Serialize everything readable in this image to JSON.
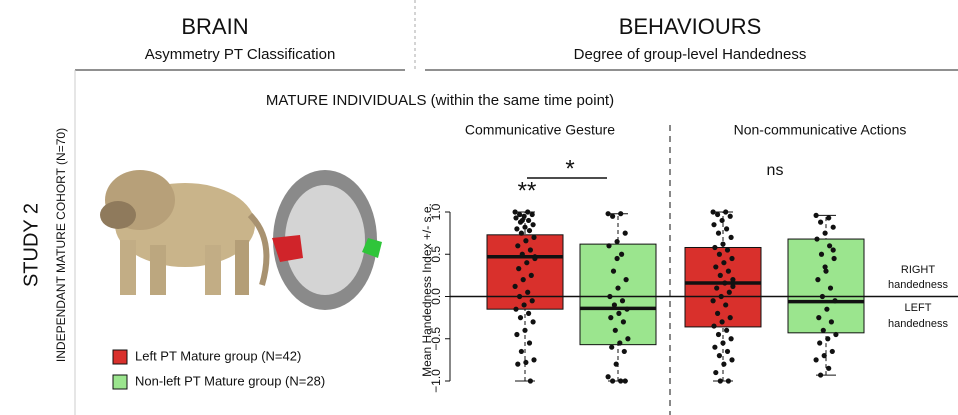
{
  "header": {
    "left_title": "BRAIN",
    "left_subtitle": "Asymmetry PT Classification",
    "right_title": "BEHAVIOURS",
    "right_subtitle": "Degree of group-level Handedness"
  },
  "row_label": "STUDY 2",
  "cohort_label": "INDEPENDANT MATURE COHORT (N=70)",
  "section_title": "MATURE INDIVIDUALS (within the same time point)",
  "chart_data": {
    "type": "box",
    "ylabel": "Mean Handedness Index +/- s.e.",
    "categories": [
      "Communicative Gesture",
      "Non-communicative Actions"
    ],
    "annotations": [
      "**",
      "*",
      "ns"
    ],
    "right_label": [
      "RIGHT",
      "handedness"
    ],
    "left_label": [
      "LEFT",
      "handedness"
    ],
    "ylim": [
      -1.1,
      1.2
    ],
    "yticks": [
      {
        "value": -1,
        "label": "−1.0"
      },
      {
        "value": -0.5,
        "label": "−0.5"
      },
      {
        "value": 0,
        "label": "0.0"
      },
      0.5,
      {
        "value": 1,
        "label": "1.0"
      }
    ],
    "series": [
      {
        "name": "Left PT Mature group (N=42)",
        "color": "#d9302c",
        "boxes": [
          {
            "low": -1,
            "q1": -0.15,
            "median": 0.47,
            "q3": 0.73,
            "high": 1,
            "points": [
              1,
              1,
              0.97,
              0.97,
              0.95,
              0.93,
              0.9,
              0.88,
              0.85,
              0.82,
              0.8,
              0.78,
              0.75,
              0.7,
              0.66,
              0.6,
              0.55,
              0.5,
              0.47,
              0.4,
              0.33,
              0.25,
              0.2,
              0.12,
              0.05,
              0,
              -0.05,
              -0.1,
              -0.15,
              -0.2,
              -0.25,
              -0.3,
              -0.4,
              -0.45,
              -0.55,
              -0.65,
              -0.75,
              -0.78,
              -0.8,
              -1,
              0.9,
              0.45
            ]
          },
          {
            "low": -1,
            "q1": -0.36,
            "median": 0.16,
            "q3": 0.58,
            "high": 1,
            "points": [
              1,
              1,
              0.97,
              0.95,
              0.9,
              0.85,
              0.8,
              0.75,
              0.7,
              0.62,
              0.58,
              0.55,
              0.5,
              0.45,
              0.4,
              0.35,
              0.3,
              0.25,
              0.2,
              0.16,
              0.1,
              0.05,
              0,
              -0.05,
              -0.1,
              -0.2,
              -0.25,
              -0.3,
              -0.35,
              -0.4,
              -0.45,
              -0.5,
              -0.55,
              -0.6,
              -0.65,
              -0.7,
              -0.75,
              -0.8,
              -0.9,
              -1,
              -1,
              0.12
            ]
          }
        ]
      },
      {
        "name": "Non-left PT Mature group (N=28)",
        "color": "#9be58e",
        "boxes": [
          {
            "low": -1,
            "q1": -0.57,
            "median": -0.14,
            "q3": 0.62,
            "high": 0.98,
            "points": [
              0.98,
              0.98,
              0.95,
              0.75,
              0.65,
              0.6,
              0.5,
              0.3,
              0.2,
              0.1,
              0,
              -0.05,
              -0.1,
              -0.15,
              -0.2,
              -0.25,
              -0.3,
              -0.4,
              -0.5,
              -0.55,
              -0.6,
              -0.65,
              -0.8,
              -0.95,
              -1,
              -1,
              -1,
              0.45
            ]
          },
          {
            "low": -0.93,
            "q1": -0.43,
            "median": -0.06,
            "q3": 0.68,
            "high": 0.96,
            "points": [
              0.96,
              0.93,
              0.88,
              0.82,
              0.75,
              0.68,
              0.6,
              0.5,
              0.45,
              0.3,
              0.2,
              0.1,
              0,
              -0.05,
              -0.15,
              -0.25,
              -0.3,
              -0.4,
              -0.45,
              -0.5,
              -0.55,
              -0.65,
              -0.7,
              -0.75,
              -0.85,
              -0.93,
              0.55,
              0.35
            ]
          }
        ]
      }
    ]
  }
}
